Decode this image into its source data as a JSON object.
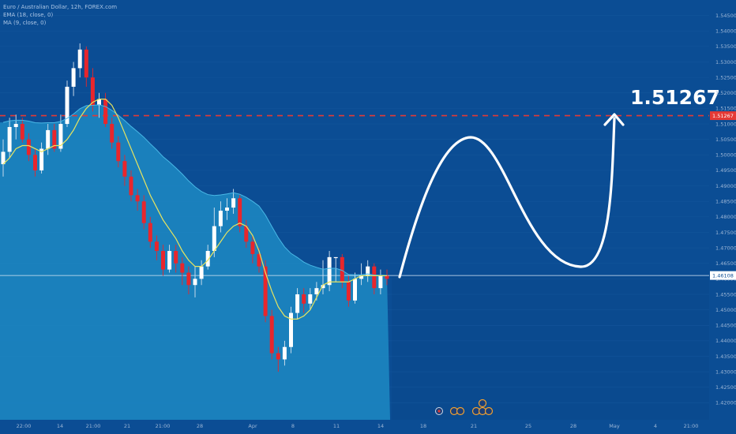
{
  "legend": {
    "symbol": "Euro / Australian Dollar, 12h, FOREX.com",
    "ema": "EMA (18, close, 0)",
    "ma": "MA (9, close, 0)"
  },
  "chart_data": {
    "type": "candlestick",
    "title": "",
    "ylim": [
      1.4145,
      1.55
    ],
    "y_ticks": [
      1.545,
      1.54,
      1.535,
      1.53,
      1.525,
      1.52,
      1.515,
      1.51,
      1.505,
      1.5,
      1.495,
      1.49,
      1.485,
      1.48,
      1.475,
      1.47,
      1.465,
      1.46,
      1.455,
      1.45,
      1.445,
      1.44,
      1.435,
      1.43,
      1.425,
      1.42
    ],
    "y_tick_labels": [
      "1.54500",
      "1.54000",
      "1.53500",
      "1.53000",
      "1.52500",
      "1.52000",
      "1.51500",
      "1.51000",
      "1.50500",
      "1.50000",
      "1.49500",
      "1.49000",
      "1.48500",
      "1.48000",
      "1.47500",
      "1.47000",
      "1.46500",
      "1.46000",
      "1.45500",
      "1.45000",
      "1.44500",
      "1.44000",
      "1.43500",
      "1.43000",
      "1.42500",
      "1.42000"
    ],
    "x_tick_labels": [
      "22:00",
      "14",
      "21:00",
      "21",
      "21:00",
      "28",
      "Apr",
      "8",
      "11",
      "14",
      "18",
      "21",
      "25",
      "28",
      "May",
      "4",
      "21:00"
    ],
    "target_level": 1.51267,
    "target_label": "1.51267",
    "current_price": 1.46108,
    "current_label": "1.46108",
    "candles": [
      [
        1.497,
        1.501,
        1.493,
        1.505
      ],
      [
        1.501,
        1.509,
        1.499,
        1.512
      ],
      [
        1.509,
        1.51,
        1.505,
        1.513
      ],
      [
        1.51,
        1.505,
        1.504,
        1.512
      ],
      [
        1.505,
        1.5,
        1.498,
        1.507
      ],
      [
        1.5,
        1.495,
        1.493,
        1.502
      ],
      [
        1.495,
        1.502,
        1.494,
        1.504
      ],
      [
        1.502,
        1.508,
        1.5,
        1.51
      ],
      [
        1.508,
        1.502,
        1.501,
        1.51
      ],
      [
        1.502,
        1.51,
        1.501,
        1.513
      ],
      [
        1.51,
        1.522,
        1.509,
        1.524
      ],
      [
        1.522,
        1.528,
        1.519,
        1.53
      ],
      [
        1.528,
        1.534,
        1.525,
        1.536
      ],
      [
        1.534,
        1.525,
        1.522,
        1.535
      ],
      [
        1.525,
        1.516,
        1.514,
        1.528
      ],
      [
        1.516,
        1.518,
        1.512,
        1.52
      ],
      [
        1.518,
        1.51,
        1.509,
        1.52
      ],
      [
        1.51,
        1.504,
        1.502,
        1.512
      ],
      [
        1.504,
        1.498,
        1.496,
        1.506
      ],
      [
        1.498,
        1.493,
        1.49,
        1.5
      ],
      [
        1.493,
        1.487,
        1.485,
        1.495
      ],
      [
        1.487,
        1.485,
        1.482,
        1.489
      ],
      [
        1.485,
        1.478,
        1.476,
        1.487
      ],
      [
        1.478,
        1.472,
        1.47,
        1.48
      ],
      [
        1.472,
        1.469,
        1.466,
        1.474
      ],
      [
        1.469,
        1.463,
        1.461,
        1.471
      ],
      [
        1.463,
        1.469,
        1.462,
        1.471
      ],
      [
        1.469,
        1.465,
        1.462,
        1.471
      ],
      [
        1.465,
        1.462,
        1.458,
        1.467
      ],
      [
        1.462,
        1.458,
        1.455,
        1.464
      ],
      [
        1.458,
        1.46,
        1.454,
        1.464
      ],
      [
        1.46,
        1.464,
        1.458,
        1.466
      ],
      [
        1.464,
        1.469,
        1.463,
        1.471
      ],
      [
        1.469,
        1.477,
        1.467,
        1.483
      ],
      [
        1.477,
        1.482,
        1.475,
        1.485
      ],
      [
        1.482,
        1.483,
        1.479,
        1.486
      ],
      [
        1.483,
        1.486,
        1.481,
        1.489
      ],
      [
        1.486,
        1.477,
        1.475,
        1.487
      ],
      [
        1.477,
        1.472,
        1.47,
        1.479
      ],
      [
        1.472,
        1.468,
        1.465,
        1.474
      ],
      [
        1.468,
        1.464,
        1.462,
        1.47
      ],
      [
        1.464,
        1.448,
        1.446,
        1.466
      ],
      [
        1.448,
        1.436,
        1.434,
        1.45
      ],
      [
        1.436,
        1.434,
        1.43,
        1.438
      ],
      [
        1.434,
        1.438,
        1.432,
        1.44
      ],
      [
        1.438,
        1.449,
        1.436,
        1.451
      ],
      [
        1.449,
        1.455,
        1.447,
        1.457
      ],
      [
        1.455,
        1.452,
        1.449,
        1.457
      ],
      [
        1.452,
        1.455,
        1.45,
        1.457
      ],
      [
        1.455,
        1.457,
        1.453,
        1.459
      ],
      [
        1.457,
        1.458,
        1.455,
        1.466
      ],
      [
        1.458,
        1.467,
        1.456,
        1.469
      ],
      [
        1.467,
        1.467,
        1.459,
        1.467
      ],
      [
        1.467,
        1.459,
        1.457,
        1.468
      ],
      [
        1.459,
        1.453,
        1.451,
        1.461
      ],
      [
        1.453,
        1.46,
        1.452,
        1.462
      ],
      [
        1.46,
        1.461,
        1.458,
        1.465
      ],
      [
        1.461,
        1.464,
        1.459,
        1.466
      ],
      [
        1.464,
        1.457,
        1.455,
        1.465
      ],
      [
        1.457,
        1.461,
        1.455,
        1.463
      ],
      [
        1.461,
        1.46,
        1.458,
        1.463
      ]
    ],
    "ema18": [
      1.5105,
      1.511,
      1.5112,
      1.5112,
      1.5109,
      1.5104,
      1.5103,
      1.5104,
      1.5104,
      1.5108,
      1.5118,
      1.5132,
      1.5149,
      1.5159,
      1.516,
      1.5162,
      1.5156,
      1.5144,
      1.5128,
      1.5111,
      1.5092,
      1.5075,
      1.5057,
      1.5036,
      1.5016,
      1.4994,
      1.4977,
      1.4958,
      1.4938,
      1.4916,
      1.4897,
      1.4882,
      1.4872,
      1.4869,
      1.4871,
      1.4874,
      1.4878,
      1.4873,
      1.4863,
      1.485,
      1.4835,
      1.4806,
      1.4769,
      1.4733,
      1.4703,
      1.4682,
      1.4669,
      1.4654,
      1.4644,
      1.4637,
      1.4631,
      1.4634,
      1.4634,
      1.4627,
      1.4614,
      1.4613,
      1.4613,
      1.4616,
      1.4612,
      1.4612,
      1.4611
    ],
    "ma9": [
      1.497,
      1.499,
      1.502,
      1.503,
      1.503,
      1.502,
      1.501,
      1.502,
      1.503,
      1.503,
      1.505,
      1.508,
      1.512,
      1.515,
      1.517,
      1.518,
      1.518,
      1.516,
      1.512,
      1.507,
      1.502,
      1.497,
      1.492,
      1.487,
      1.483,
      1.479,
      1.476,
      1.473,
      1.469,
      1.466,
      1.464,
      1.464,
      1.466,
      1.469,
      1.472,
      1.475,
      1.477,
      1.478,
      1.477,
      1.474,
      1.469,
      1.462,
      1.456,
      1.451,
      1.448,
      1.447,
      1.447,
      1.448,
      1.45,
      1.454,
      1.458,
      1.459,
      1.459,
      1.459,
      1.459,
      1.46,
      1.461,
      1.461,
      1.461,
      1.461,
      1.461
    ]
  }
}
